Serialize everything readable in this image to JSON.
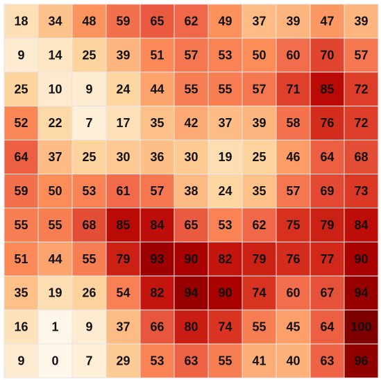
{
  "chart_data": {
    "type": "heatmap",
    "title": "",
    "xlabel": "",
    "ylabel": "",
    "colormap": "OrRd",
    "value_range": [
      0,
      100
    ],
    "grid": true,
    "show_values": true,
    "values": [
      [
        18,
        34,
        48,
        59,
        65,
        62,
        49,
        37,
        39,
        47,
        39
      ],
      [
        9,
        14,
        25,
        39,
        51,
        57,
        53,
        50,
        60,
        70,
        57
      ],
      [
        25,
        10,
        9,
        24,
        44,
        55,
        55,
        57,
        71,
        85,
        72
      ],
      [
        52,
        22,
        7,
        17,
        35,
        42,
        37,
        39,
        58,
        76,
        72
      ],
      [
        64,
        37,
        25,
        30,
        36,
        30,
        19,
        25,
        46,
        64,
        68
      ],
      [
        59,
        50,
        53,
        61,
        57,
        38,
        24,
        35,
        57,
        69,
        73
      ],
      [
        55,
        55,
        68,
        85,
        84,
        65,
        53,
        62,
        75,
        79,
        84
      ],
      [
        51,
        44,
        55,
        79,
        93,
        90,
        82,
        79,
        76,
        77,
        90
      ],
      [
        35,
        19,
        26,
        54,
        82,
        94,
        90,
        74,
        60,
        67,
        94
      ],
      [
        16,
        1,
        9,
        37,
        66,
        80,
        74,
        55,
        45,
        64,
        100
      ],
      [
        9,
        0,
        7,
        29,
        53,
        63,
        55,
        41,
        40,
        63,
        96
      ]
    ]
  }
}
